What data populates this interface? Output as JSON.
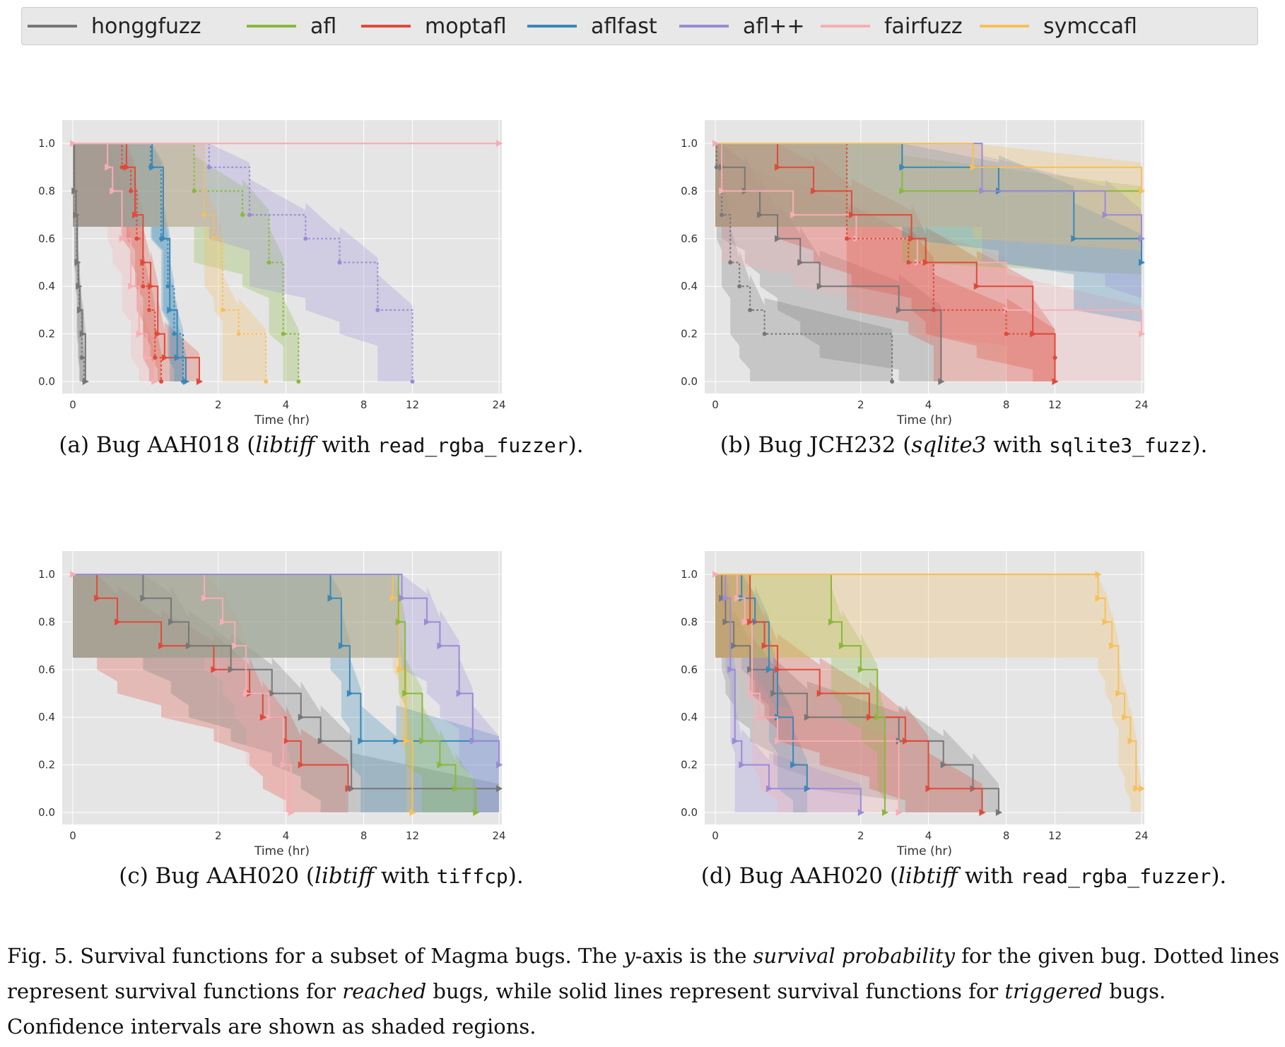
{
  "legend": [
    {
      "name": "honggfuzz",
      "color": "#777777"
    },
    {
      "name": "afl",
      "color": "#8ab83c"
    },
    {
      "name": "moptafl",
      "color": "#e04a3a"
    },
    {
      "name": "aflfast",
      "color": "#3a88b8"
    },
    {
      "name": "afl++",
      "color": "#9b8bd6"
    },
    {
      "name": "fairfuzz",
      "color": "#f7aeb4"
    },
    {
      "name": "symccafl",
      "color": "#f6c05c"
    }
  ],
  "chart_data": [
    {
      "type": "line",
      "title": "",
      "caption": {
        "prefix": "(a) Bug AAH018 (",
        "library": "libtiff",
        "middle": " with ",
        "driver": "read_rgba_fuzzer",
        "suffix": ")."
      },
      "xlabel": "Time (hr)",
      "ylim": [
        0,
        1
      ],
      "xlim": [
        0,
        24
      ],
      "x_scale": "log",
      "xticks": [
        "0",
        "2",
        "4",
        "8",
        "12",
        "24"
      ],
      "yticks": [
        "0.0",
        "0.2",
        "0.4",
        "0.6",
        "0.8",
        "1.0"
      ],
      "series": [
        {
          "name": "honggfuzz",
          "kind": "reached",
          "x": [
            0.01,
            0.02,
            0.03,
            0.04,
            0.05,
            0.07,
            0.09
          ],
          "y": [
            0.8,
            0.7,
            0.5,
            0.4,
            0.3,
            0.1,
            0.0
          ]
        },
        {
          "name": "honggfuzz",
          "kind": "triggered",
          "x": [
            0.012,
            0.025,
            0.035,
            0.045,
            0.055,
            0.075,
            0.1
          ],
          "y": [
            0.8,
            0.7,
            0.5,
            0.4,
            0.3,
            0.2,
            0.0
          ]
        },
        {
          "name": "fairfuzz",
          "kind": "triggered",
          "x": [
            0.3,
            0.35,
            0.45,
            0.55,
            0.65,
            0.75,
            0.85
          ],
          "y": [
            0.9,
            0.8,
            0.6,
            0.4,
            0.2,
            0.1,
            0.0
          ]
        },
        {
          "name": "moptafl",
          "kind": "reached",
          "x": [
            0.45,
            0.55,
            0.62,
            0.7,
            0.78,
            0.86,
            0.95
          ],
          "y": [
            0.9,
            0.8,
            0.6,
            0.4,
            0.3,
            0.1,
            0.0
          ]
        },
        {
          "name": "moptafl",
          "kind": "triggered",
          "x": [
            0.5,
            0.6,
            0.7,
            0.8,
            0.9,
            1.0,
            1.6
          ],
          "y": [
            0.9,
            0.7,
            0.5,
            0.4,
            0.2,
            0.1,
            0.0
          ]
        },
        {
          "name": "aflfast",
          "kind": "reached",
          "x": [
            0.8,
            0.95,
            1.05,
            1.15,
            1.3
          ],
          "y": [
            0.9,
            0.6,
            0.4,
            0.2,
            0.0
          ]
        },
        {
          "name": "aflfast",
          "kind": "triggered",
          "x": [
            0.82,
            0.98,
            1.08,
            1.2,
            1.35
          ],
          "y": [
            0.9,
            0.6,
            0.3,
            0.1,
            0.0
          ]
        },
        {
          "name": "afl",
          "kind": "reached",
          "x": [
            1.5,
            2.6,
            3.4,
            3.9,
            4.5
          ],
          "y": [
            0.8,
            0.7,
            0.5,
            0.2,
            0.0
          ]
        },
        {
          "name": "symccafl",
          "kind": "reached",
          "x": [
            1.7,
            1.9,
            2.1,
            2.5,
            3.3
          ],
          "y": [
            0.7,
            0.6,
            0.3,
            0.2,
            0.0
          ]
        },
        {
          "name": "afl++",
          "kind": "reached",
          "x": [
            1.8,
            2.8,
            4.8,
            6.5,
            9.0,
            12.0
          ],
          "y": [
            0.9,
            0.7,
            0.6,
            0.5,
            0.3,
            0.0
          ]
        },
        {
          "name": "fairfuzz",
          "kind": "censored",
          "x": [
            0.0,
            24.0
          ],
          "y": [
            1.0,
            1.0
          ]
        }
      ]
    },
    {
      "type": "line",
      "title": "",
      "caption": {
        "prefix": "(b) Bug JCH232 (",
        "library": "sqlite3",
        "middle": " with ",
        "driver": "sqlite3_fuzz",
        "suffix": ")."
      },
      "xlabel": "Time (hr)",
      "ylim": [
        0,
        1
      ],
      "xlim": [
        0,
        24
      ],
      "x_scale": "log",
      "xticks": [
        "0",
        "2",
        "4",
        "8",
        "12",
        "24"
      ],
      "yticks": [
        "0.0",
        "0.2",
        "0.4",
        "0.6",
        "0.8",
        "1.0"
      ],
      "series": [
        {
          "name": "honggfuzz",
          "kind": "reached",
          "x": [
            0.01,
            0.05,
            0.12,
            0.2,
            0.3,
            0.45,
            2.8
          ],
          "y": [
            0.9,
            0.7,
            0.5,
            0.4,
            0.3,
            0.2,
            0.0
          ]
        },
        {
          "name": "honggfuzz",
          "kind": "triggered",
          "x": [
            0.05,
            0.25,
            0.4,
            0.6,
            0.9,
            1.2,
            3.0,
            4.5
          ],
          "y": [
            0.9,
            0.8,
            0.7,
            0.6,
            0.5,
            0.4,
            0.3,
            0.0
          ]
        },
        {
          "name": "fairfuzz",
          "kind": "triggered",
          "x": [
            0.05,
            0.8,
            1.9,
            3.6,
            8.0,
            24.0
          ],
          "y": [
            0.8,
            0.7,
            0.6,
            0.5,
            0.3,
            0.2
          ]
        },
        {
          "name": "moptafl",
          "kind": "triggered",
          "x": [
            0.6,
            1.1,
            1.8,
            3.4,
            3.9,
            6.2,
            10.0,
            12.0
          ],
          "y": [
            0.9,
            0.8,
            0.7,
            0.6,
            0.5,
            0.4,
            0.2,
            0.0
          ]
        },
        {
          "name": "moptafl",
          "kind": "reached",
          "x": [
            1.7,
            3.3,
            4.2,
            8.0,
            12.0
          ],
          "y": [
            0.6,
            0.5,
            0.3,
            0.2,
            0.1
          ]
        },
        {
          "name": "afl",
          "kind": "triggered",
          "x": [
            3.1,
            24.0
          ],
          "y": [
            0.8,
            0.8
          ]
        },
        {
          "name": "aflfast",
          "kind": "triggered",
          "x": [
            3.1,
            7.5,
            14.0,
            24.0
          ],
          "y": [
            0.9,
            0.8,
            0.6,
            0.5
          ]
        },
        {
          "name": "afl++",
          "kind": "triggered",
          "x": [
            6.5,
            18.0,
            24.0
          ],
          "y": [
            0.8,
            0.7,
            0.6
          ]
        },
        {
          "name": "symccafl",
          "kind": "triggered",
          "x": [
            6.0,
            24.0
          ],
          "y": [
            0.9,
            0.8
          ]
        }
      ]
    },
    {
      "type": "line",
      "title": "",
      "caption": {
        "prefix": "(c) Bug AAH020 (",
        "library": "libtiff",
        "middle": " with ",
        "driver": "tiffcp",
        "suffix": ")."
      },
      "xlabel": "Time (hr)",
      "ylim": [
        0,
        1
      ],
      "xlim": [
        0,
        24
      ],
      "x_scale": "log",
      "xticks": [
        "0",
        "2",
        "4",
        "8",
        "12",
        "24"
      ],
      "yticks": [
        "0.0",
        "0.2",
        "0.4",
        "0.6",
        "0.8",
        "1.0"
      ],
      "series": [
        {
          "name": "moptafl",
          "kind": "triggered",
          "x": [
            0.2,
            0.4,
            0.95,
            1.9,
            2.8,
            3.2,
            4.0,
            4.6,
            7.0
          ],
          "y": [
            0.9,
            0.8,
            0.7,
            0.6,
            0.5,
            0.4,
            0.3,
            0.2,
            0.1
          ]
        },
        {
          "name": "honggfuzz",
          "kind": "triggered",
          "x": [
            0.7,
            1.1,
            1.4,
            2.3,
            3.5,
            4.6,
            5.5,
            7.2,
            24.0
          ],
          "y": [
            0.9,
            0.8,
            0.7,
            0.6,
            0.5,
            0.4,
            0.3,
            0.1,
            0.1
          ]
        },
        {
          "name": "fairfuzz",
          "kind": "triggered",
          "x": [
            1.7,
            2.1,
            2.4,
            2.7,
            3.4,
            3.9,
            4.2
          ],
          "y": [
            0.9,
            0.8,
            0.7,
            0.5,
            0.4,
            0.2,
            0.0
          ]
        },
        {
          "name": "aflfast",
          "kind": "triggered",
          "x": [
            6.0,
            6.6,
            7.1,
            7.8,
            10.5,
            24.0
          ],
          "y": [
            0.9,
            0.7,
            0.5,
            0.3,
            0.3,
            0.2
          ]
        },
        {
          "name": "symccafl",
          "kind": "triggered",
          "x": [
            10.2,
            10.8,
            11.4,
            12.0
          ],
          "y": [
            0.9,
            0.6,
            0.3,
            0.0
          ]
        },
        {
          "name": "afl",
          "kind": "triggered",
          "x": [
            10.7,
            11.3,
            13.0,
            15.0,
            17.0,
            20.0
          ],
          "y": [
            0.8,
            0.5,
            0.3,
            0.2,
            0.1,
            0.0
          ]
        },
        {
          "name": "afl++",
          "kind": "triggered",
          "x": [
            11.0,
            13.5,
            15.0,
            17.5,
            19.5,
            24.0
          ],
          "y": [
            0.9,
            0.8,
            0.7,
            0.5,
            0.3,
            0.2
          ]
        }
      ]
    },
    {
      "type": "line",
      "title": "",
      "caption": {
        "prefix": "(d) Bug AAH020 (",
        "library": "libtiff",
        "middle": " with ",
        "driver": "read_rgba_fuzzer",
        "suffix": ")."
      },
      "xlabel": "Time (hr)",
      "ylim": [
        0,
        1
      ],
      "xlim": [
        0,
        24
      ],
      "x_scale": "log",
      "xticks": [
        "0",
        "2",
        "4",
        "8",
        "12",
        "24"
      ],
      "yticks": [
        "0.0",
        "0.2",
        "0.4",
        "0.6",
        "0.8",
        "1.0"
      ],
      "series": [
        {
          "name": "honggfuzz",
          "kind": "triggered",
          "x": [
            0.05,
            0.08,
            0.15,
            0.3,
            0.55,
            1.0,
            3.0,
            4.6,
            6.0,
            7.5
          ],
          "y": [
            0.9,
            0.8,
            0.7,
            0.6,
            0.5,
            0.4,
            0.3,
            0.2,
            0.1,
            0.0
          ]
        },
        {
          "name": "afl++",
          "kind": "triggered",
          "x": [
            0.08,
            0.12,
            0.16,
            0.22,
            0.5,
            2.0
          ],
          "y": [
            0.9,
            0.6,
            0.3,
            0.2,
            0.1,
            0.0
          ]
        },
        {
          "name": "aflfast",
          "kind": "triggered",
          "x": [
            0.22,
            0.35,
            0.5,
            0.6,
            0.8,
            1.0
          ],
          "y": [
            0.9,
            0.8,
            0.6,
            0.4,
            0.2,
            0.1
          ]
        },
        {
          "name": "fairfuzz",
          "kind": "triggered",
          "x": [
            0.18,
            0.25,
            0.32,
            0.4,
            0.6,
            3.0
          ],
          "y": [
            0.9,
            0.8,
            0.5,
            0.4,
            0.3,
            0.0
          ]
        },
        {
          "name": "moptafl",
          "kind": "triggered",
          "x": [
            0.3,
            0.45,
            0.6,
            1.2,
            2.2,
            3.2,
            4.0,
            6.5
          ],
          "y": [
            0.8,
            0.7,
            0.6,
            0.5,
            0.4,
            0.3,
            0.1,
            0.0
          ]
        },
        {
          "name": "afl",
          "kind": "triggered",
          "x": [
            1.4,
            1.6,
            2.0,
            2.4,
            2.6
          ],
          "y": [
            0.8,
            0.7,
            0.6,
            0.4,
            0.0
          ]
        },
        {
          "name": "symccafl",
          "kind": "triggered",
          "x": [
            17.0,
            18.0,
            19.0,
            20.0,
            21.0,
            22.0,
            23.0,
            24.0
          ],
          "y": [
            0.9,
            0.8,
            0.7,
            0.5,
            0.4,
            0.3,
            0.1,
            0.1
          ]
        },
        {
          "name": "symccafl",
          "kind": "censored",
          "x": [
            0.0,
            17.0
          ],
          "y": [
            1.0,
            1.0
          ]
        }
      ]
    }
  ],
  "figure_caption": {
    "p1": "Fig. 5.  Survival functions for a subset of Magma bugs. The ",
    "y": "y",
    "p2": "-axis is the ",
    "survival": "survival probability",
    "p3": " for the given bug. Dotted lines represent survival functions for ",
    "reached": "reached",
    "p4": " bugs, while solid lines represent survival functions for ",
    "triggered": "triggered",
    "p5": " bugs. Confidence intervals are shown as shaded regions."
  }
}
